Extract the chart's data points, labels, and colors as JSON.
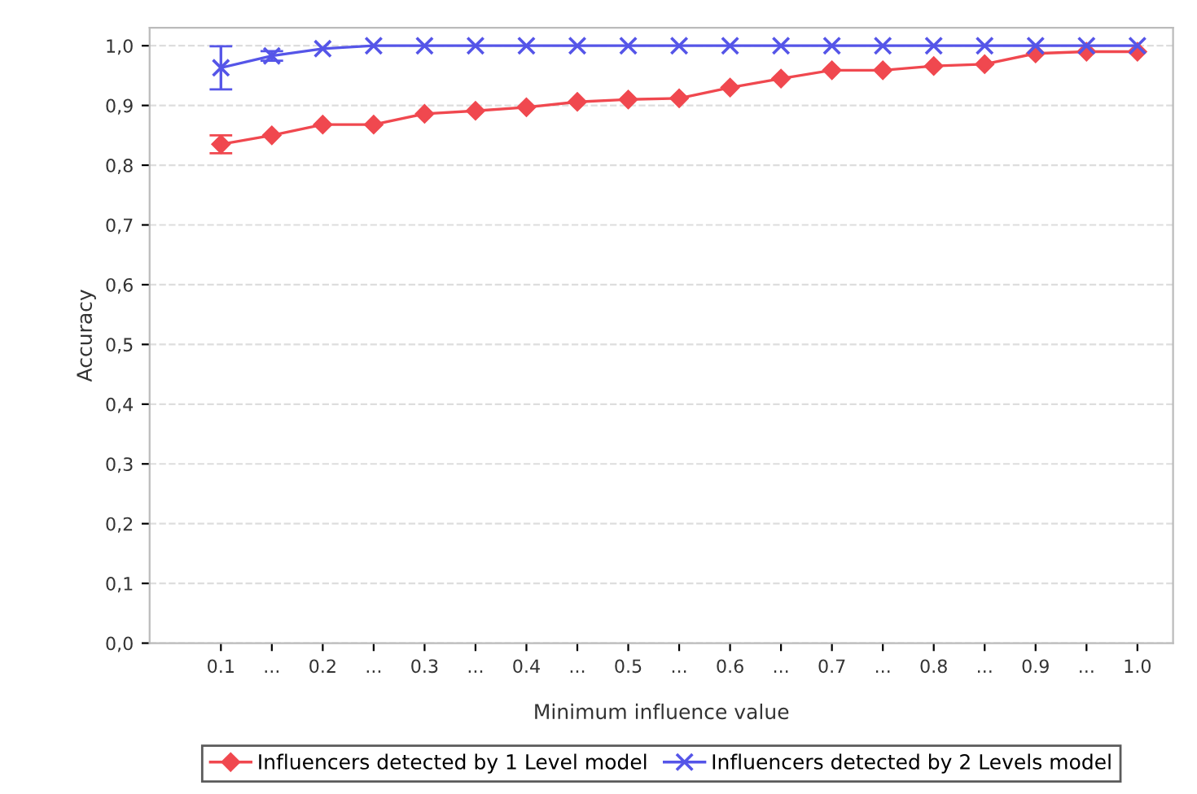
{
  "chart_data": {
    "type": "line",
    "xlabel": "Minimum influence value",
    "ylabel": "Accuracy",
    "categories": [
      "0.1",
      "...",
      "0.2",
      "...",
      "0.3",
      "...",
      "0.4",
      "...",
      "0.5",
      "...",
      "0.6",
      "...",
      "0.7",
      "...",
      "0.8",
      "...",
      "0.9",
      "...",
      "1.0"
    ],
    "series": [
      {
        "name": "Influencers detected by 1 Level model",
        "color": "#f0484f",
        "marker": "diamond",
        "values": [
          0.835,
          0.85,
          0.868,
          0.868,
          0.886,
          0.891,
          0.897,
          0.906,
          0.91,
          0.912,
          0.93,
          0.945,
          0.959,
          0.959,
          0.966,
          0.969,
          0.987,
          0.99,
          0.99
        ],
        "errors": [
          0.015,
          null,
          null,
          null,
          null,
          null,
          null,
          null,
          null,
          null,
          null,
          null,
          null,
          null,
          null,
          null,
          null,
          null,
          null
        ]
      },
      {
        "name": "Influencers detected by 2 Levels model",
        "color": "#5555e8",
        "marker": "cross",
        "values": [
          0.963,
          0.983,
          0.995,
          1.0,
          1.0,
          1.0,
          1.0,
          1.0,
          1.0,
          1.0,
          1.0,
          1.0,
          1.0,
          1.0,
          1.0,
          1.0,
          1.0,
          1.0,
          1.0
        ],
        "errors": [
          0.036,
          0.008,
          null,
          null,
          null,
          null,
          null,
          null,
          null,
          null,
          null,
          null,
          null,
          null,
          null,
          null,
          null,
          null,
          null
        ]
      }
    ],
    "ylim": [
      0,
      1.03
    ],
    "yticks": [
      {
        "value": 0,
        "label": "0,0"
      },
      {
        "value": 0.1,
        "label": "0,1"
      },
      {
        "value": 0.2,
        "label": "0,2"
      },
      {
        "value": 0.3,
        "label": "0,3"
      },
      {
        "value": 0.4,
        "label": "0,4"
      },
      {
        "value": 0.5,
        "label": "0,5"
      },
      {
        "value": 0.6,
        "label": "0,6"
      },
      {
        "value": 0.7,
        "label": "0,7"
      },
      {
        "value": 0.8,
        "label": "0,8"
      },
      {
        "value": 0.9,
        "label": "0,9"
      },
      {
        "value": 1.0,
        "label": "1,0"
      }
    ],
    "grid": "y",
    "legend": "bottom",
    "line_style": "solid"
  }
}
